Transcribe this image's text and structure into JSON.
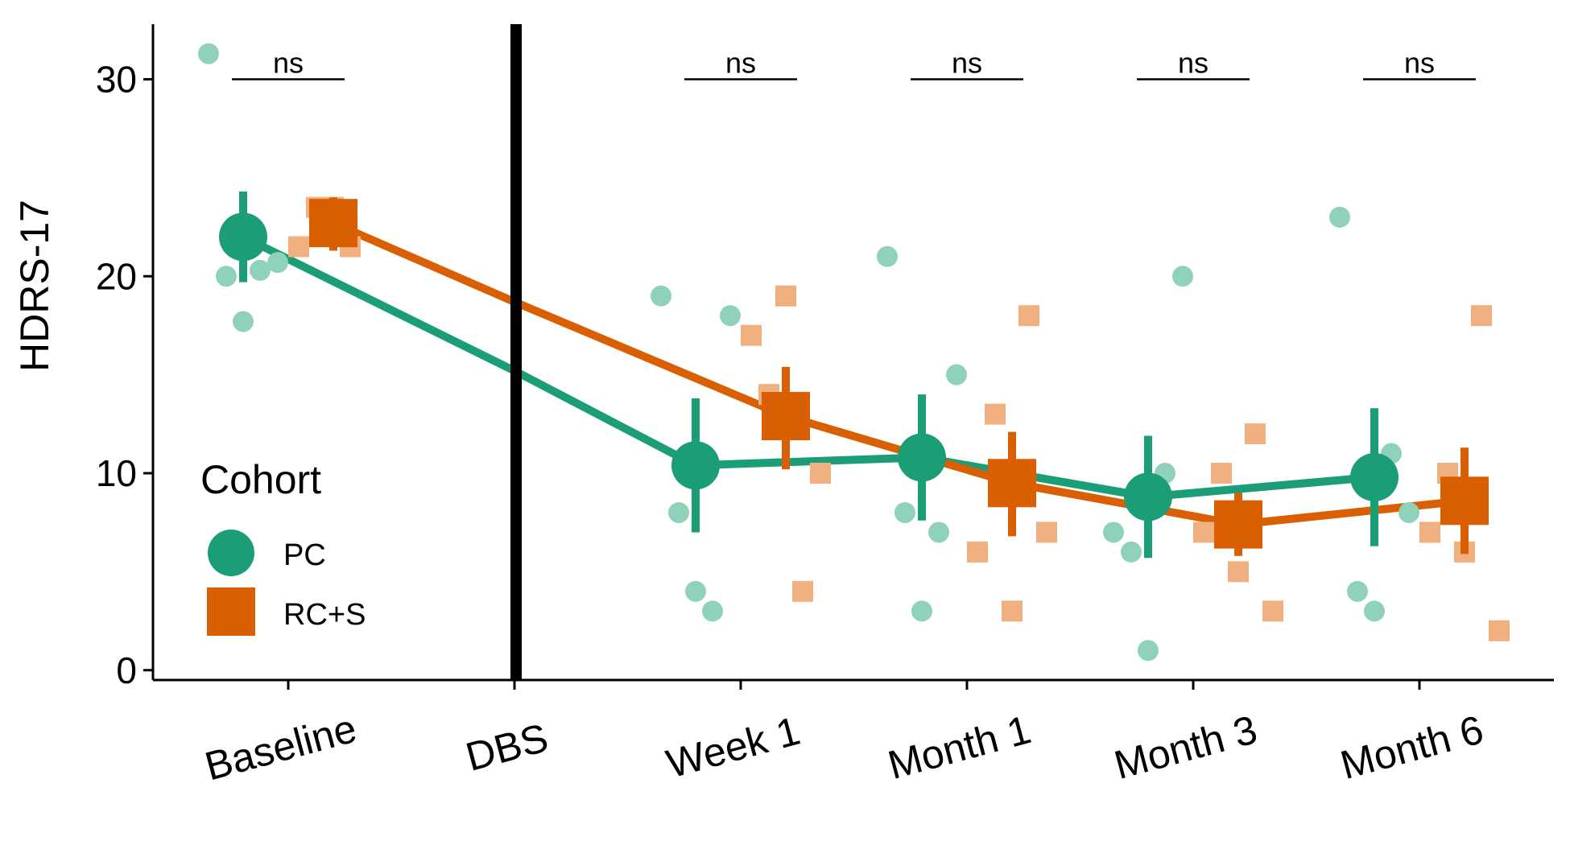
{
  "chart_data": {
    "type": "line",
    "ylabel": "HDRS-17",
    "xlabel": "",
    "ylim": [
      -0.5,
      32.8
    ],
    "yticks": [
      0,
      10,
      20,
      30
    ],
    "ytick_labels": [
      "0",
      "10",
      "20",
      "30"
    ],
    "categories": [
      "Baseline",
      "DBS",
      "Week 1",
      "Month 1",
      "Month 3",
      "Month 6"
    ],
    "dbs_marker": "DBS",
    "legend": {
      "title": "Cohort",
      "entries": [
        "PC",
        "RC+S"
      ],
      "placement": "bottom-left"
    },
    "colors": {
      "PC": "#1b9e77",
      "RC+S": "#d95f02",
      "PC_light": "#8fd1bb",
      "RC+S_light": "#f1b080",
      "axis": "#000000"
    },
    "series": [
      {
        "name": "PC",
        "marker": "circle",
        "means": {
          "Baseline": 22.0,
          "DBS": 15.2,
          "Week 1": 10.4,
          "Month 1": 10.8,
          "Month 3": 8.8,
          "Month 6": 9.8
        },
        "ci": {
          "Baseline": [
            19.7,
            24.3
          ],
          "Week 1": [
            7.0,
            13.8
          ],
          "Month 1": [
            7.6,
            14.0
          ],
          "Month 3": [
            5.7,
            11.9
          ],
          "Month 6": [
            6.3,
            13.3
          ]
        },
        "points": {
          "Baseline": [
            31.3,
            20.0,
            17.7,
            20.3,
            20.7
          ],
          "Week 1": [
            19.0,
            8.0,
            4.0,
            3.0,
            18.0
          ],
          "Month 1": [
            21.0,
            8.0,
            3.0,
            7.0,
            15.0
          ],
          "Month 3": [
            7.0,
            6.0,
            1.0,
            10.0,
            20.0
          ],
          "Month 6": [
            23.0,
            4.0,
            3.0,
            11.0,
            8.0
          ]
        }
      },
      {
        "name": "RC+S",
        "marker": "square",
        "means": {
          "Baseline": 22.7,
          "DBS": 18.7,
          "Week 1": 12.9,
          "Month 1": 9.5,
          "Month 3": 7.4,
          "Month 6": 8.6
        },
        "ci": {
          "Baseline": [
            21.3,
            24.0
          ],
          "Week 1": [
            10.2,
            15.4
          ],
          "Month 1": [
            6.8,
            12.1
          ],
          "Month 3": [
            5.8,
            9.0
          ],
          "Month 6": [
            5.9,
            11.3
          ]
        },
        "points": {
          "Baseline": [
            21.5,
            23.5,
            23.5,
            21.5
          ],
          "Week 1": [
            17.0,
            14.0,
            19.0,
            4.0,
            10.0
          ],
          "Month 1": [
            6.0,
            13.0,
            3.0,
            18.0,
            7.0
          ],
          "Month 3": [
            7.0,
            10.0,
            5.0,
            12.0,
            3.0
          ],
          "Month 6": [
            7.0,
            10.0,
            6.0,
            18.0,
            2.0
          ]
        }
      }
    ],
    "annotations": [
      {
        "text": "ns",
        "category": "Baseline",
        "y": 30.0
      },
      {
        "text": "ns",
        "category": "Week 1",
        "y": 30.0
      },
      {
        "text": "ns",
        "category": "Month 1",
        "y": 30.0
      },
      {
        "text": "ns",
        "category": "Month 3",
        "y": 30.0
      },
      {
        "text": "ns",
        "category": "Month 6",
        "y": 30.0
      }
    ]
  }
}
